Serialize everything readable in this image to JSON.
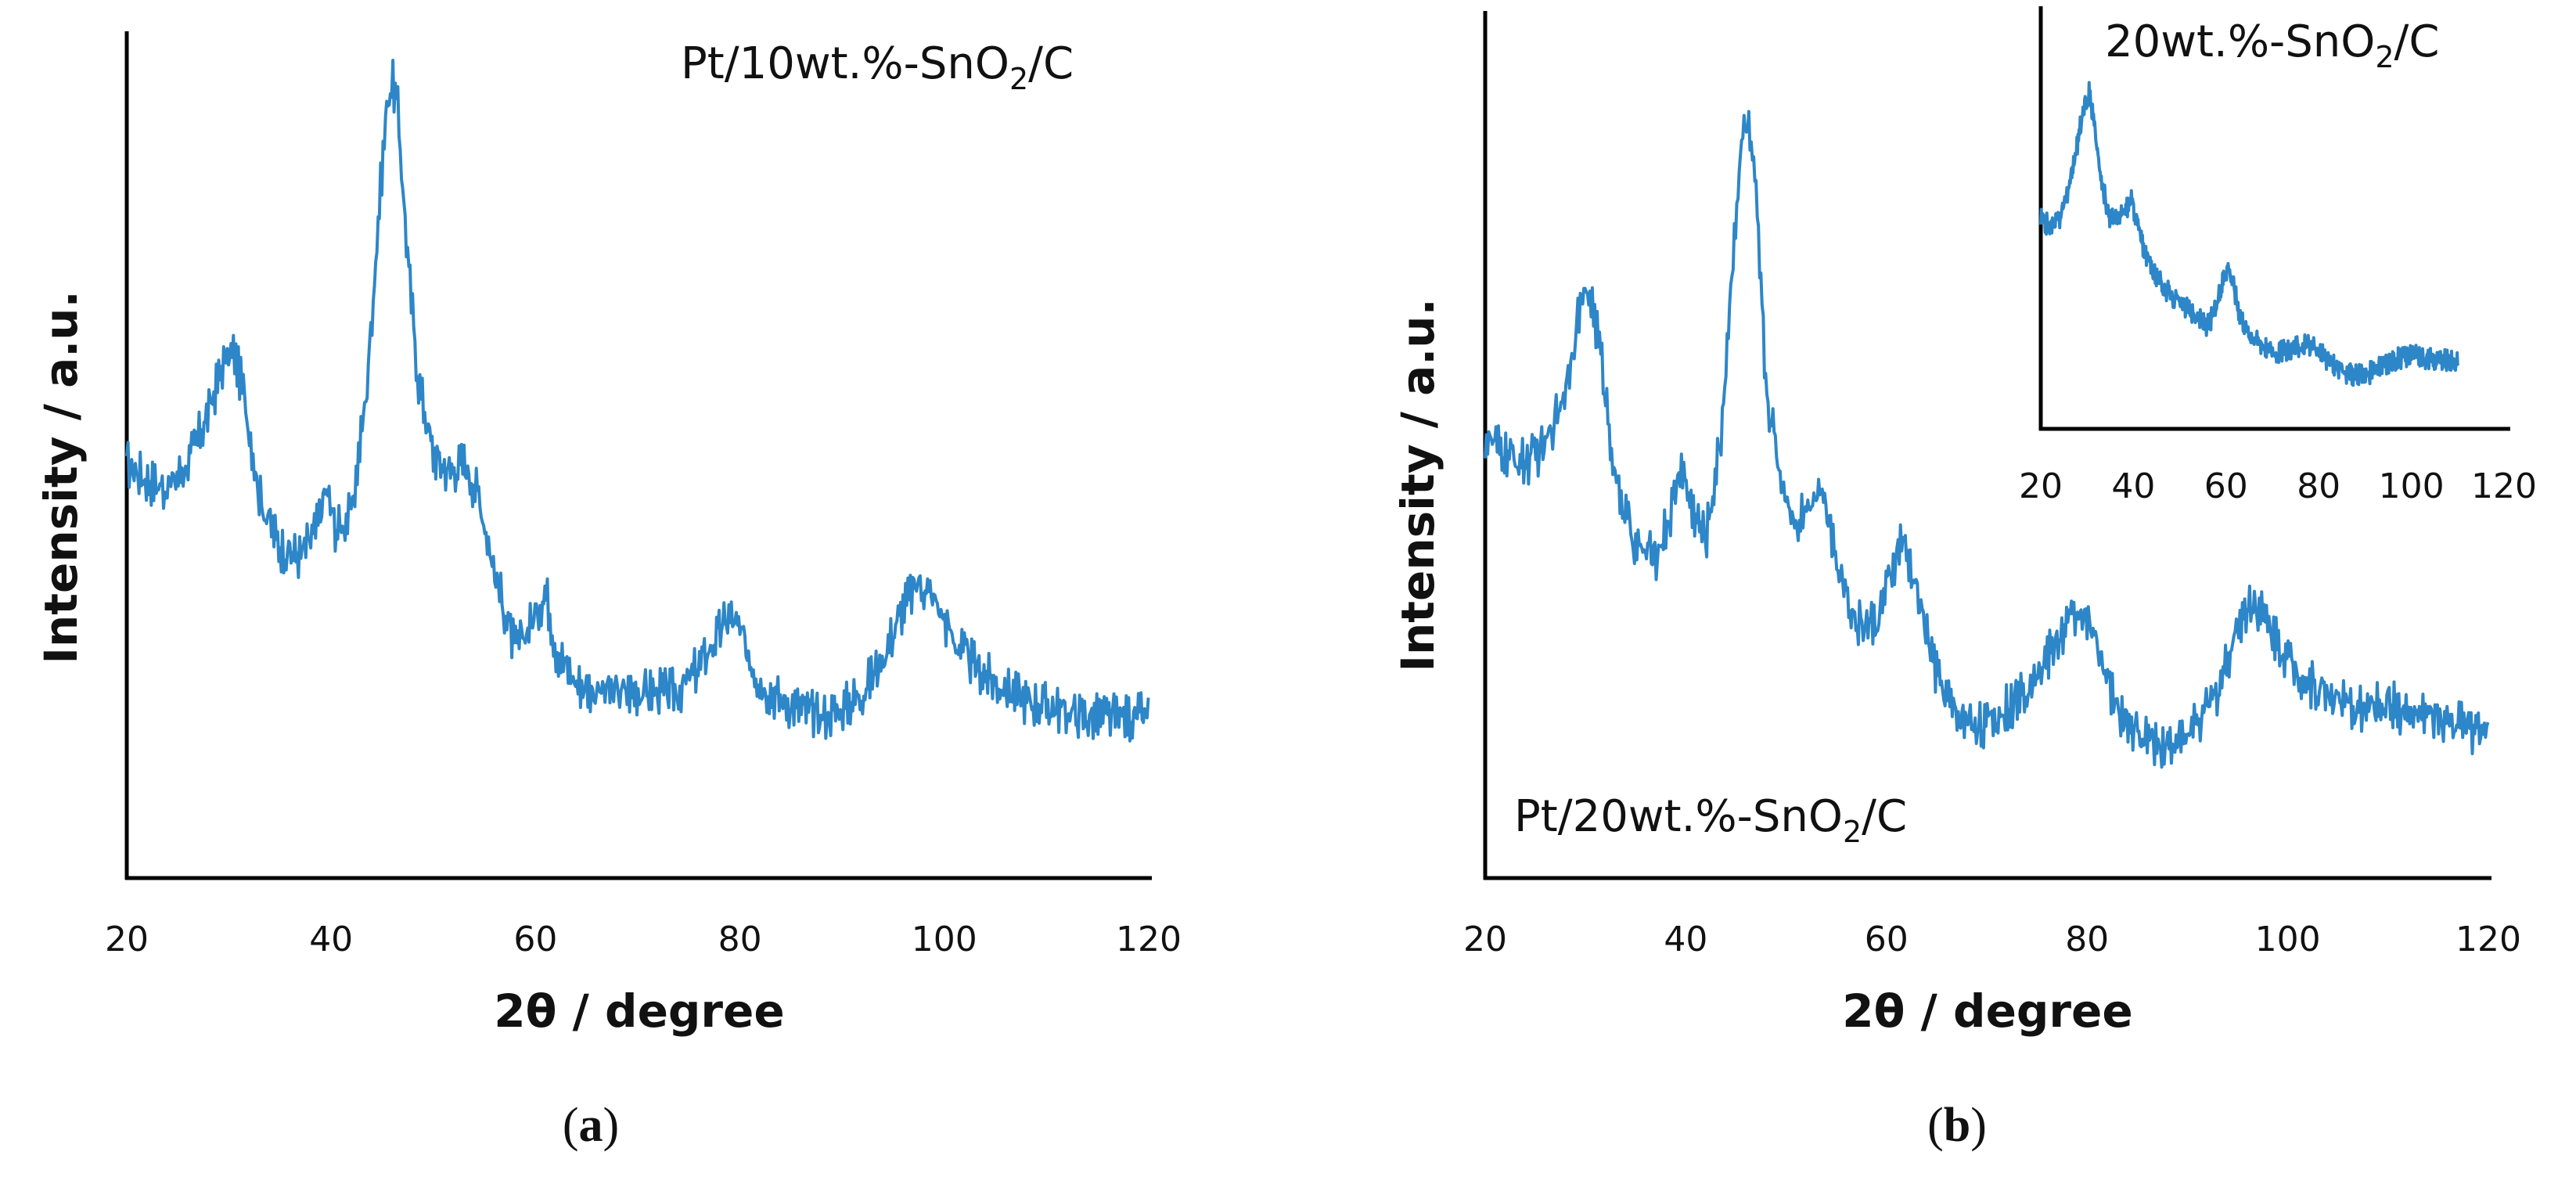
{
  "chart_data": [
    {
      "id": "a",
      "type": "line",
      "panel_label": "a",
      "label": {
        "prefix": "Pt/10wt.%-SnO",
        "sub": "2",
        "suffix": "/C"
      },
      "xlabel": "2θ / degree",
      "ylabel": "Intensity / a.u.",
      "xlim": [
        20,
        120
      ],
      "xticks": [
        "20",
        "40",
        "60",
        "80",
        "100",
        "120"
      ],
      "ylim": [
        0,
        100
      ],
      "color": "#2d86c8",
      "series": [
        {
          "name": "Pt/10wt.%-SnO2/C",
          "x": [
            20,
            22,
            24,
            26,
            28,
            29.5,
            30.5,
            31.5,
            33,
            35,
            37,
            38.5,
            39.5,
            40.5,
            42,
            43.5,
            44.8,
            45.5,
            46,
            46.5,
            47.5,
            48.5,
            50,
            51.5,
            53,
            54.5,
            56,
            58,
            60,
            61,
            62,
            64,
            66,
            68,
            70,
            72,
            74,
            76,
            78,
            79,
            80,
            82,
            84,
            86,
            88,
            90,
            92,
            94,
            96,
            97.5,
            99,
            101,
            103,
            105,
            108,
            111,
            114,
            117,
            120
          ],
          "y": [
            49,
            47,
            46,
            49,
            55,
            61,
            62,
            57,
            45,
            39,
            38,
            41,
            46,
            41,
            43,
            58,
            81,
            92,
            94,
            91,
            73,
            59,
            50,
            48,
            49,
            45,
            36,
            27,
            31,
            34,
            27,
            23,
            22,
            22,
            22,
            22,
            22,
            25,
            29,
            31,
            29,
            23,
            21,
            20,
            19,
            20,
            22,
            26,
            32,
            35,
            33,
            28,
            25,
            23,
            21,
            20,
            19,
            19,
            19
          ]
        }
      ]
    },
    {
      "id": "b",
      "type": "line",
      "panel_label": "b",
      "label": {
        "prefix": "Pt/20wt.%-SnO",
        "sub": "2",
        "suffix": "/C"
      },
      "xlabel": "2θ / degree",
      "ylabel": "Intensity / a.u.",
      "xlim": [
        20,
        120
      ],
      "xticks": [
        "20",
        "40",
        "60",
        "80",
        "100",
        "120"
      ],
      "ylim": [
        0,
        100
      ],
      "color": "#2d86c8",
      "series": [
        {
          "name": "Pt/20wt.%-SnO2/C",
          "x": [
            20,
            22,
            24,
            26,
            28,
            29.5,
            30.5,
            31.5,
            33,
            35,
            37,
            38.5,
            39.5,
            40.5,
            42,
            43.5,
            45,
            45.8,
            46.3,
            47,
            48,
            49.5,
            51,
            52.5,
            53.5,
            55,
            57,
            59,
            60.5,
            61.5,
            63,
            65,
            67,
            70,
            73,
            76,
            78,
            79.5,
            81,
            83,
            85,
            87,
            89,
            91,
            93,
            95,
            96.5,
            98,
            100,
            102,
            104,
            106,
            108,
            110,
            112,
            114,
            117,
            120
          ],
          "y": [
            52,
            50,
            49,
            51,
            58,
            68,
            69,
            62,
            47,
            39,
            38,
            43,
            49,
            44,
            40,
            52,
            79,
            89,
            88,
            80,
            58,
            47,
            42,
            45,
            46,
            38,
            30,
            30,
            36,
            40,
            34,
            24,
            19,
            18,
            21,
            26,
            30,
            32,
            27,
            20,
            17,
            16,
            16,
            18,
            22,
            30,
            33,
            30,
            26,
            23,
            22,
            20,
            20,
            21,
            19,
            19,
            18,
            17
          ]
        }
      ]
    },
    {
      "id": "inset",
      "type": "line",
      "label": {
        "prefix": "20wt.%-SnO",
        "sub": "2",
        "suffix": "/C"
      },
      "xlim": [
        20,
        120
      ],
      "xticks": [
        "20",
        "40",
        "60",
        "80",
        "100",
        "120"
      ],
      "ylim": [
        0,
        100
      ],
      "color": "#2d86c8",
      "series": [
        {
          "name": "20wt.%-SnO2/C",
          "x": [
            20,
            22,
            24,
            26,
            28,
            29.5,
            30.5,
            31.5,
            33,
            35,
            37,
            38.5,
            39.5,
            40.5,
            42,
            44,
            46,
            48,
            50,
            52,
            54,
            56,
            58,
            59.5,
            60.5,
            61.5,
            63,
            65,
            68,
            71,
            74,
            77,
            79,
            81,
            84,
            87,
            90,
            93,
            96,
            99,
            102,
            105,
            108,
            110
          ],
          "y": [
            55,
            53,
            55,
            63,
            75,
            86,
            88,
            80,
            65,
            55,
            55,
            58,
            60,
            56,
            48,
            42,
            38,
            35,
            33,
            31,
            29,
            27,
            32,
            40,
            43,
            38,
            30,
            25,
            22,
            20,
            21,
            22,
            21,
            19,
            16,
            14,
            14,
            16,
            18,
            19,
            19,
            18,
            18,
            17
          ]
        }
      ]
    }
  ]
}
